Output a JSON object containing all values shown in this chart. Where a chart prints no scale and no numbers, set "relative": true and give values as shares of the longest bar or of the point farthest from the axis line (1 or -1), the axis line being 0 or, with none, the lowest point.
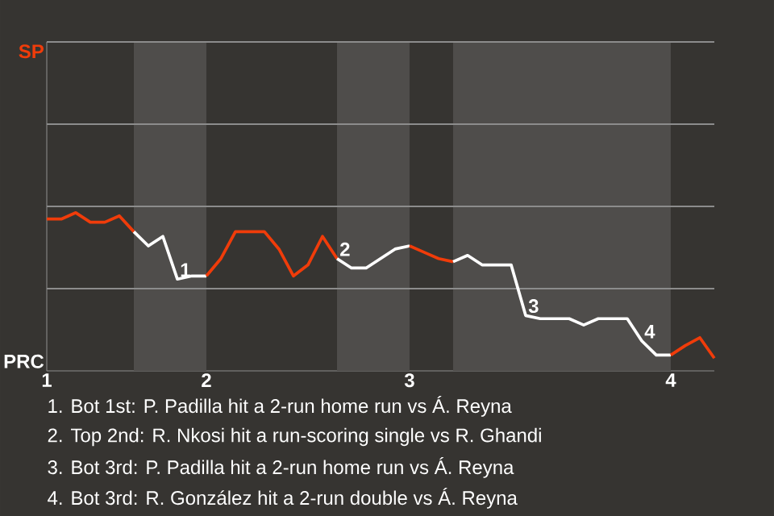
{
  "chart_data": {
    "type": "line",
    "relative": true,
    "categories": [
      "1",
      null,
      null,
      null,
      null,
      null,
      null,
      null,
      null,
      null,
      null,
      "2",
      null,
      null,
      null,
      null,
      null,
      null,
      null,
      null,
      null,
      null,
      null,
      null,
      null,
      "3",
      null,
      null,
      null,
      null,
      null,
      null,
      null,
      null,
      null,
      null,
      null,
      null,
      null,
      null,
      null,
      null,
      null,
      "4",
      null,
      null,
      null
    ],
    "ref_lines": [
      {
        "axis": "y",
        "value": 0.52,
        "color": "#8c8c8c"
      },
      {
        "axis": "y",
        "value": 1.04,
        "color": "#8c8c8c"
      },
      {
        "axis": "y",
        "value": 1.56,
        "color": "#8c8c8c"
      },
      {
        "axis": "y",
        "value": 2.08,
        "color": "#8c8c8c"
      }
    ],
    "series": [
      {
        "color": "#f03c0a",
        "values": [
          0.96,
          0.96,
          1,
          0.94,
          0.94,
          0.98,
          0.88,
          null,
          null,
          null,
          null,
          null,
          null,
          null,
          null,
          null,
          null,
          null,
          null,
          null,
          null,
          null,
          null,
          null,
          null,
          null,
          null,
          null,
          null,
          null,
          null,
          null,
          null,
          null,
          null,
          null,
          null,
          null,
          null,
          null,
          null,
          null,
          null,
          null,
          null,
          null,
          null
        ]
      },
      {
        "color": "#ffffff",
        "values": [
          null,
          null,
          null,
          null,
          null,
          null,
          0.88,
          0.79,
          0.85,
          0.58,
          0.6,
          0.6,
          null,
          null,
          null,
          null,
          null,
          null,
          null,
          null,
          null,
          null,
          null,
          null,
          null,
          null,
          null,
          null,
          null,
          null,
          null,
          null,
          null,
          null,
          null,
          null,
          null,
          null,
          null,
          null,
          null,
          null,
          null,
          null,
          null,
          null,
          null
        ]
      },
      {
        "color": "#f03c0a",
        "values": [
          null,
          null,
          null,
          null,
          null,
          null,
          null,
          null,
          null,
          null,
          null,
          0.6,
          0.71,
          0.88,
          0.88,
          0.88,
          0.77,
          0.6,
          0.67,
          0.85,
          0.71,
          null,
          null,
          null,
          null,
          null,
          null,
          null,
          null,
          null,
          null,
          null,
          null,
          null,
          null,
          null,
          null,
          null,
          null,
          null,
          null,
          null,
          null,
          null,
          null,
          null,
          null
        ]
      },
      {
        "color": "#ffffff",
        "values": [
          null,
          null,
          null,
          null,
          null,
          null,
          null,
          null,
          null,
          null,
          null,
          null,
          null,
          null,
          null,
          null,
          null,
          null,
          null,
          null,
          0.71,
          0.65,
          0.65,
          0.71,
          0.77,
          0.79,
          null,
          null,
          null,
          null,
          null,
          null,
          null,
          null,
          null,
          null,
          null,
          null,
          null,
          null,
          null,
          null,
          null,
          null,
          null,
          null,
          null
        ]
      },
      {
        "color": "#f03c0a",
        "values": [
          null,
          null,
          null,
          null,
          null,
          null,
          null,
          null,
          null,
          null,
          null,
          null,
          null,
          null,
          null,
          null,
          null,
          null,
          null,
          null,
          null,
          null,
          null,
          null,
          null,
          0.79,
          0.75,
          0.71,
          0.69,
          null,
          null,
          null,
          null,
          null,
          null,
          null,
          null,
          null,
          null,
          null,
          null,
          null,
          null,
          null,
          null,
          null,
          null
        ]
      },
      {
        "color": "#ffffff",
        "values": [
          null,
          null,
          null,
          null,
          null,
          null,
          null,
          null,
          null,
          null,
          null,
          null,
          null,
          null,
          null,
          null,
          null,
          null,
          null,
          null,
          null,
          null,
          null,
          null,
          null,
          null,
          null,
          null,
          0.69,
          0.73,
          0.67,
          0.67,
          0.67,
          0.35,
          0.33,
          0.33,
          0.33,
          0.29,
          0.33,
          0.33,
          0.33,
          0.19,
          0.1,
          0.1,
          null,
          null,
          null
        ]
      },
      {
        "color": "#f03c0a",
        "values": [
          null,
          null,
          null,
          null,
          null,
          null,
          null,
          null,
          null,
          null,
          null,
          null,
          null,
          null,
          null,
          null,
          null,
          null,
          null,
          null,
          null,
          null,
          null,
          null,
          null,
          null,
          null,
          null,
          null,
          null,
          null,
          null,
          null,
          null,
          null,
          null,
          null,
          null,
          null,
          null,
          null,
          null,
          null,
          0.1,
          0.16,
          0.21,
          0.08
        ]
      }
    ],
    "annotations": [
      "SP",
      "PRC",
      "1",
      "2",
      "3",
      "4",
      "1. Bot 1st: P. Padilla hit a 2-run home run vs Á. Reyna",
      "2. Top 2nd: R. Nkosi hit a run-scoring single vs R. Ghandi",
      "3. Bot 3rd: P. Padilla hit a 2-run home run vs Á. Reyna",
      "4. Bot 3rd: R. González hit a 2-run double vs Á. Reyna"
    ]
  }
}
